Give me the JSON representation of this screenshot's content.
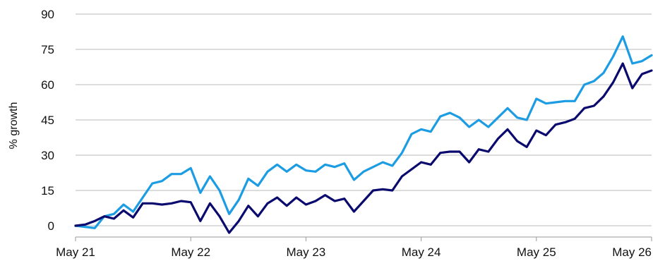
{
  "chart_data": {
    "type": "line",
    "title": "",
    "xlabel": "",
    "ylabel": "% growth",
    "ylim": [
      -3,
      92
    ],
    "yticks": [
      0,
      15,
      30,
      45,
      60,
      75,
      90
    ],
    "xticks": [
      {
        "month": 0,
        "label": "May 21"
      },
      {
        "month": 12,
        "label": "May 22"
      },
      {
        "month": 24,
        "label": "May 23"
      },
      {
        "month": 36,
        "label": "May 24"
      },
      {
        "month": 48,
        "label": "May 25"
      },
      {
        "month": 60,
        "label": "May 26"
      }
    ],
    "x_unit": "months since May 21",
    "grid": true,
    "legend": "none",
    "series": [
      {
        "color": "#1b9ce3",
        "values": [
          0,
          -0.5,
          -1,
          4,
          5,
          9,
          6,
          12,
          18,
          19,
          22,
          22,
          24.5,
          14,
          21,
          15,
          5,
          11,
          20,
          17,
          23,
          26,
          23,
          26,
          23.5,
          23,
          26,
          25,
          26.5,
          19.5,
          23,
          25,
          27,
          25.5,
          31,
          39,
          41,
          40,
          46.5,
          48,
          46,
          42,
          45,
          42,
          46,
          50,
          46,
          45,
          54,
          52,
          52.5,
          53,
          53,
          60,
          61.5,
          65,
          72,
          80.5,
          69,
          70,
          72.5
        ]
      },
      {
        "color": "#0a0a6e",
        "values": [
          0,
          0.5,
          2,
          4,
          3,
          6.5,
          3.5,
          9.5,
          9.5,
          9,
          9.5,
          10.5,
          10,
          2,
          9.5,
          4,
          -3,
          2,
          8.5,
          4,
          9.5,
          12,
          8.5,
          12,
          9,
          10.5,
          13,
          10.5,
          11.5,
          6,
          10.5,
          15,
          15.5,
          15,
          21,
          24,
          27,
          26,
          31,
          31.5,
          31.5,
          27,
          32.5,
          31.5,
          37,
          41,
          36,
          33.5,
          40.5,
          38.5,
          43,
          44,
          45.5,
          50,
          51,
          55,
          61,
          69,
          58.5,
          64.5,
          66
        ]
      }
    ]
  }
}
